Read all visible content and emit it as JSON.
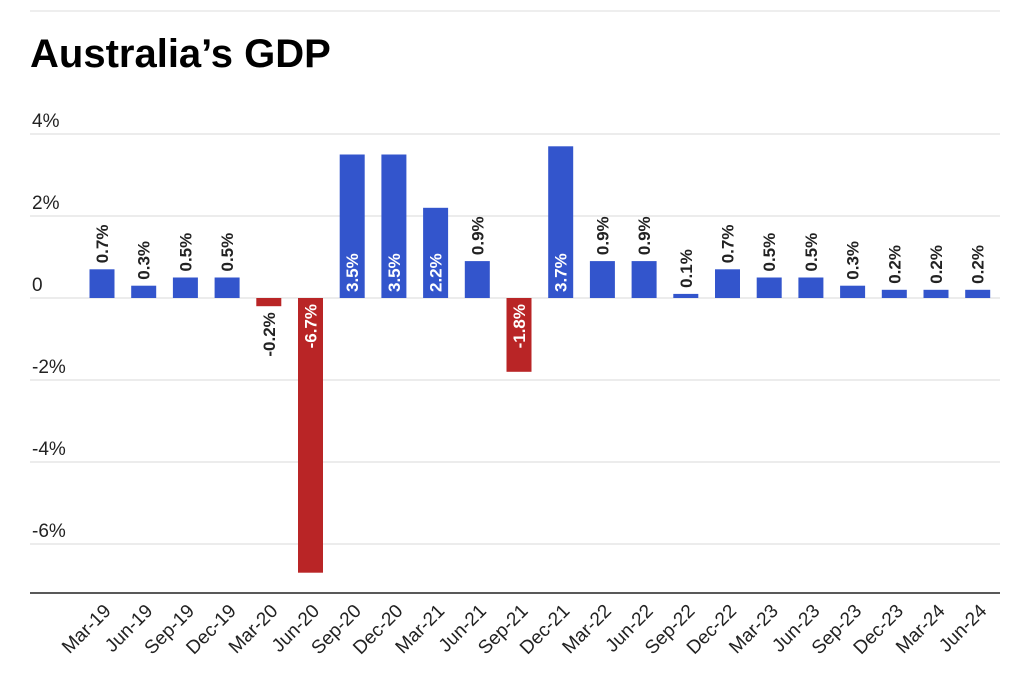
{
  "chart_data": {
    "type": "bar",
    "title": "Australia’s GDP",
    "xlabel": "",
    "ylabel": "",
    "ylim": [
      -7.4,
      4.0
    ],
    "y_ticks": [
      4,
      2,
      0,
      -2,
      -4,
      -6
    ],
    "y_tick_labels": [
      "4%",
      "2%",
      "0",
      "-2%",
      "-4%",
      "-6%"
    ],
    "grid": true,
    "legend": "none",
    "colors": {
      "positive": "#3355cc",
      "negative": "#b92526",
      "grid": "#d9d9d9",
      "baseline_axis": "#222222"
    },
    "categories": [
      "Mar-19",
      "Jun-19",
      "Sep-19",
      "Dec-19",
      "Mar-20",
      "Jun-20",
      "Sep-20",
      "Dec-20",
      "Mar-21",
      "Jun-21",
      "Sep-21",
      "Dec-21",
      "Mar-22",
      "Jun-22",
      "Sep-22",
      "Dec-22",
      "Mar-23",
      "Jun-23",
      "Sep-23",
      "Dec-23",
      "Mar-24",
      "Jun-24"
    ],
    "values": [
      0.7,
      0.3,
      0.5,
      0.5,
      -0.2,
      -6.7,
      3.5,
      3.5,
      2.2,
      0.9,
      -1.8,
      3.7,
      0.9,
      0.9,
      0.1,
      0.7,
      0.5,
      0.5,
      0.3,
      0.2,
      0.2,
      0.2
    ],
    "data_labels": [
      "0.7%",
      "0.3%",
      "0.5%",
      "0.5%",
      "-0.2%",
      "-6.7%",
      "3.5%",
      "3.5%",
      "2.2%",
      "0.9%",
      "-1.8%",
      "3.7%",
      "0.9%",
      "0.9%",
      "0.1%",
      "0.7%",
      "0.5%",
      "0.5%",
      "0.3%",
      "0.2%",
      "0.2%",
      "0.2%"
    ]
  }
}
